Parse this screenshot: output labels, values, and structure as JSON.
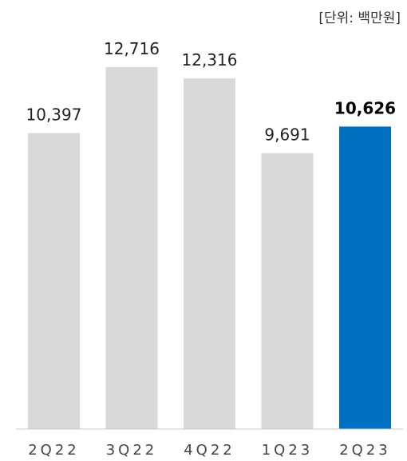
{
  "unit_label": "[단위: 백만원]",
  "colors": {
    "default_bar": "#d9d9d9",
    "highlight_bar": "#0070c0",
    "label": "#222222",
    "axis": "#444444",
    "baseline": "#c8c8c8"
  },
  "chart_data": {
    "type": "bar",
    "categories": [
      "2Q22",
      "3Q22",
      "4Q22",
      "1Q23",
      "2Q23"
    ],
    "values": [
      10397,
      12716,
      12316,
      9691,
      10626
    ],
    "value_labels": [
      "10,397",
      "12,716",
      "12,316",
      "9,691",
      "10,626"
    ],
    "highlight_index": 4,
    "unit": "[단위: 백만원]",
    "ylim": [
      0,
      13500
    ],
    "grid": false,
    "legend": "none"
  }
}
